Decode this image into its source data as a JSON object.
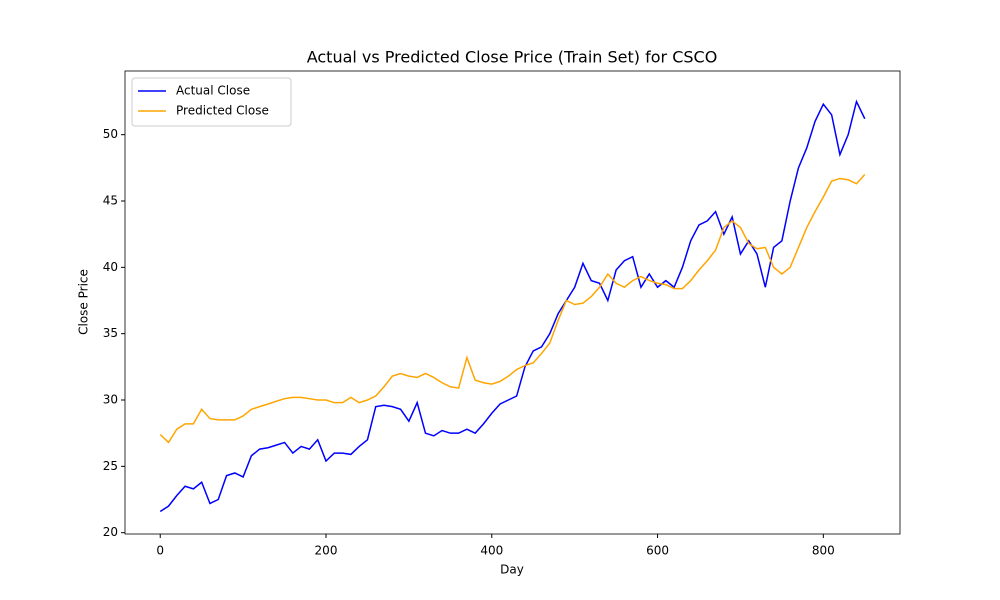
{
  "chart_data": {
    "type": "line",
    "title": "Actual vs Predicted Close Price (Train Set) for CSCO",
    "x_label": "Day",
    "y_label": "Close Price",
    "x": [
      0,
      10,
      20,
      30,
      40,
      50,
      60,
      70,
      80,
      90,
      100,
      110,
      120,
      130,
      140,
      150,
      160,
      170,
      180,
      190,
      200,
      210,
      220,
      230,
      240,
      250,
      260,
      270,
      280,
      290,
      300,
      310,
      320,
      330,
      340,
      350,
      360,
      370,
      380,
      390,
      400,
      410,
      420,
      430,
      440,
      450,
      460,
      470,
      480,
      490,
      500,
      510,
      520,
      530,
      540,
      550,
      560,
      570,
      580,
      590,
      600,
      610,
      620,
      630,
      640,
      650,
      660,
      670,
      680,
      690,
      700,
      710,
      720,
      730,
      740,
      750,
      760,
      770,
      780,
      790,
      800,
      810,
      820,
      830,
      840,
      850
    ],
    "series": [
      {
        "name": "Actual Close",
        "color": "#0000ff",
        "values": [
          21.6,
          22.0,
          22.8,
          23.5,
          23.3,
          23.8,
          22.2,
          22.5,
          24.3,
          24.5,
          24.2,
          25.8,
          26.3,
          26.4,
          26.6,
          26.8,
          26.0,
          26.5,
          26.3,
          27.0,
          25.4,
          26.0,
          26.0,
          25.9,
          26.5,
          27.0,
          29.5,
          29.6,
          29.5,
          29.3,
          28.4,
          29.8,
          27.5,
          27.3,
          27.7,
          27.5,
          27.5,
          27.8,
          27.5,
          28.2,
          29.0,
          29.7,
          30.0,
          30.3,
          32.5,
          33.7,
          34.0,
          35.0,
          36.5,
          37.5,
          38.5,
          40.3,
          39.0,
          38.8,
          37.5,
          39.8,
          40.5,
          40.8,
          38.5,
          39.5,
          38.5,
          39.0,
          38.5,
          40.0,
          42.0,
          43.2,
          43.5,
          44.2,
          42.5,
          43.8,
          41.0,
          42.0,
          41.0,
          38.5,
          41.5,
          42.0,
          45.0,
          47.5,
          49.0,
          51.0,
          52.3,
          51.5,
          48.5,
          50.0,
          52.5,
          51.2
        ]
      },
      {
        "name": "Predicted Close",
        "color": "#ffa500",
        "values": [
          27.4,
          26.8,
          27.8,
          28.2,
          28.2,
          29.3,
          28.6,
          28.5,
          28.5,
          28.5,
          28.8,
          29.3,
          29.5,
          29.7,
          29.9,
          30.1,
          30.2,
          30.2,
          30.1,
          30.0,
          30.0,
          29.8,
          29.8,
          30.2,
          29.8,
          30.0,
          30.3,
          31.0,
          31.8,
          32.0,
          31.8,
          31.7,
          32.0,
          31.7,
          31.3,
          31.0,
          30.9,
          33.2,
          31.5,
          31.3,
          31.2,
          31.4,
          31.8,
          32.3,
          32.6,
          32.8,
          33.5,
          34.3,
          36.0,
          37.5,
          37.2,
          37.3,
          37.8,
          38.5,
          39.5,
          38.8,
          38.5,
          39.0,
          39.3,
          39.0,
          38.8,
          38.7,
          38.4,
          38.4,
          39.0,
          39.8,
          40.5,
          41.3,
          43.0,
          43.5,
          43.0,
          41.8,
          41.4,
          41.5,
          40.0,
          39.5,
          40.0,
          41.5,
          43.0,
          44.2,
          45.3,
          46.5,
          46.7,
          46.6,
          46.3,
          47.0
        ]
      }
    ],
    "xlim": [
      -42.5,
      892.5
    ],
    "ylim": [
      19.9,
      54.8
    ],
    "xticks": [
      0,
      200,
      400,
      600,
      800
    ],
    "yticks": [
      20,
      25,
      30,
      35,
      40,
      45,
      50
    ],
    "legend": "upper left"
  }
}
